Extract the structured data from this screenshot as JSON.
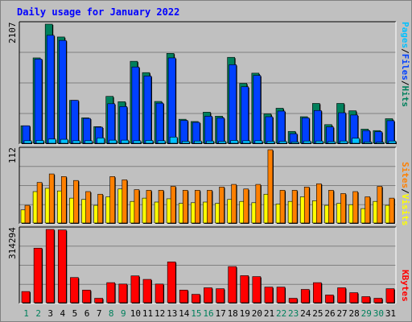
{
  "title": "Daily usage for January 2022",
  "colors": {
    "title": "#0000ff",
    "hits": "#00805c",
    "files": "#0040ff",
    "pages": "#00c0ff",
    "visits": "#ffff00",
    "sites": "#ff8000",
    "kbytes": "#ff0000",
    "day_weekday": "#000000",
    "day_weekend": "#00805c",
    "plot_bg": "#c0c0c0",
    "gridline": "#808080"
  },
  "legend_top": {
    "pages": "Pages",
    "files": "Files",
    "hits": "Hits",
    "sep": "/"
  },
  "legend_mid": {
    "sites": "Sites",
    "visits": "Visits",
    "sep": "/"
  },
  "legend_bot": {
    "kbytes": "KBytes"
  },
  "chart_data": [
    {
      "type": "bar",
      "categories": [
        "1",
        "2",
        "3",
        "4",
        "5",
        "6",
        "7",
        "8",
        "9",
        "10",
        "11",
        "12",
        "13",
        "14",
        "15",
        "16",
        "17",
        "18",
        "19",
        "20",
        "21",
        "22",
        "23",
        "24",
        "25",
        "26",
        "27",
        "28",
        "29",
        "30",
        "31"
      ],
      "weekend_days": [
        "1",
        "2",
        "8",
        "9",
        "15",
        "16",
        "22",
        "23",
        "29",
        "30"
      ],
      "ymax_label": "2107",
      "ylim": [
        0,
        2107
      ],
      "series": [
        {
          "name": "Hits",
          "values": [
            310,
            1510,
            2107,
            1880,
            760,
            450,
            295,
            830,
            735,
            1450,
            1250,
            740,
            1590,
            425,
            385,
            550,
            480,
            1520,
            1060,
            1240,
            520,
            620,
            210,
            470,
            705,
            330,
            705,
            575,
            250,
            225,
            435
          ]
        },
        {
          "name": "Files",
          "values": [
            310,
            1490,
            1910,
            1820,
            760,
            440,
            285,
            700,
            650,
            1350,
            1190,
            710,
            1510,
            405,
            370,
            480,
            450,
            1390,
            1000,
            1200,
            470,
            570,
            170,
            450,
            580,
            290,
            540,
            500,
            225,
            205,
            400
          ]
        },
        {
          "name": "Pages",
          "values": [
            45,
            50,
            75,
            70,
            45,
            45,
            95,
            55,
            55,
            45,
            50,
            45,
            110,
            35,
            40,
            40,
            35,
            50,
            45,
            45,
            35,
            35,
            25,
            40,
            40,
            30,
            40,
            90,
            25,
            20,
            40
          ]
        }
      ]
    },
    {
      "type": "bar",
      "categories": [
        "1",
        "2",
        "3",
        "4",
        "5",
        "6",
        "7",
        "8",
        "9",
        "10",
        "11",
        "12",
        "13",
        "14",
        "15",
        "16",
        "17",
        "18",
        "19",
        "20",
        "21",
        "22",
        "23",
        "24",
        "25",
        "26",
        "27",
        "28",
        "29",
        "30",
        "31"
      ],
      "ymax_label": "112",
      "ylim": [
        0,
        112
      ],
      "series": [
        {
          "name": "Sites",
          "values": [
            27,
            62,
            75,
            71,
            65,
            48,
            44,
            71,
            66,
            51,
            50,
            50,
            56,
            50,
            50,
            50,
            55,
            59,
            52,
            59,
            112,
            50,
            50,
            55,
            60,
            50,
            45,
            48,
            40,
            56,
            38
          ]
        },
        {
          "name": "Visits",
          "values": [
            20,
            48,
            53,
            49,
            38,
            36,
            27,
            40,
            52,
            33,
            38,
            32,
            37,
            30,
            31,
            32,
            30,
            36,
            33,
            31,
            44,
            29,
            33,
            40,
            34,
            27,
            30,
            28,
            22,
            33,
            27
          ]
        }
      ]
    },
    {
      "type": "bar",
      "categories": [
        "1",
        "2",
        "3",
        "4",
        "5",
        "6",
        "7",
        "8",
        "9",
        "10",
        "11",
        "12",
        "13",
        "14",
        "15",
        "16",
        "17",
        "18",
        "19",
        "20",
        "21",
        "22",
        "23",
        "24",
        "25",
        "26",
        "27",
        "28",
        "29",
        "30",
        "31"
      ],
      "ymax_label": "314294",
      "ylim": [
        0,
        314294
      ],
      "series": [
        {
          "name": "KBytes",
          "values": [
            48000,
            234000,
            314294,
            312000,
            108000,
            54000,
            19000,
            86000,
            80000,
            115000,
            100000,
            80000,
            175000,
            54000,
            36000,
            64000,
            60000,
            155000,
            116000,
            112000,
            67000,
            67000,
            19000,
            57000,
            86000,
            33000,
            64000,
            43000,
            26000,
            19000,
            60000
          ]
        }
      ]
    }
  ]
}
